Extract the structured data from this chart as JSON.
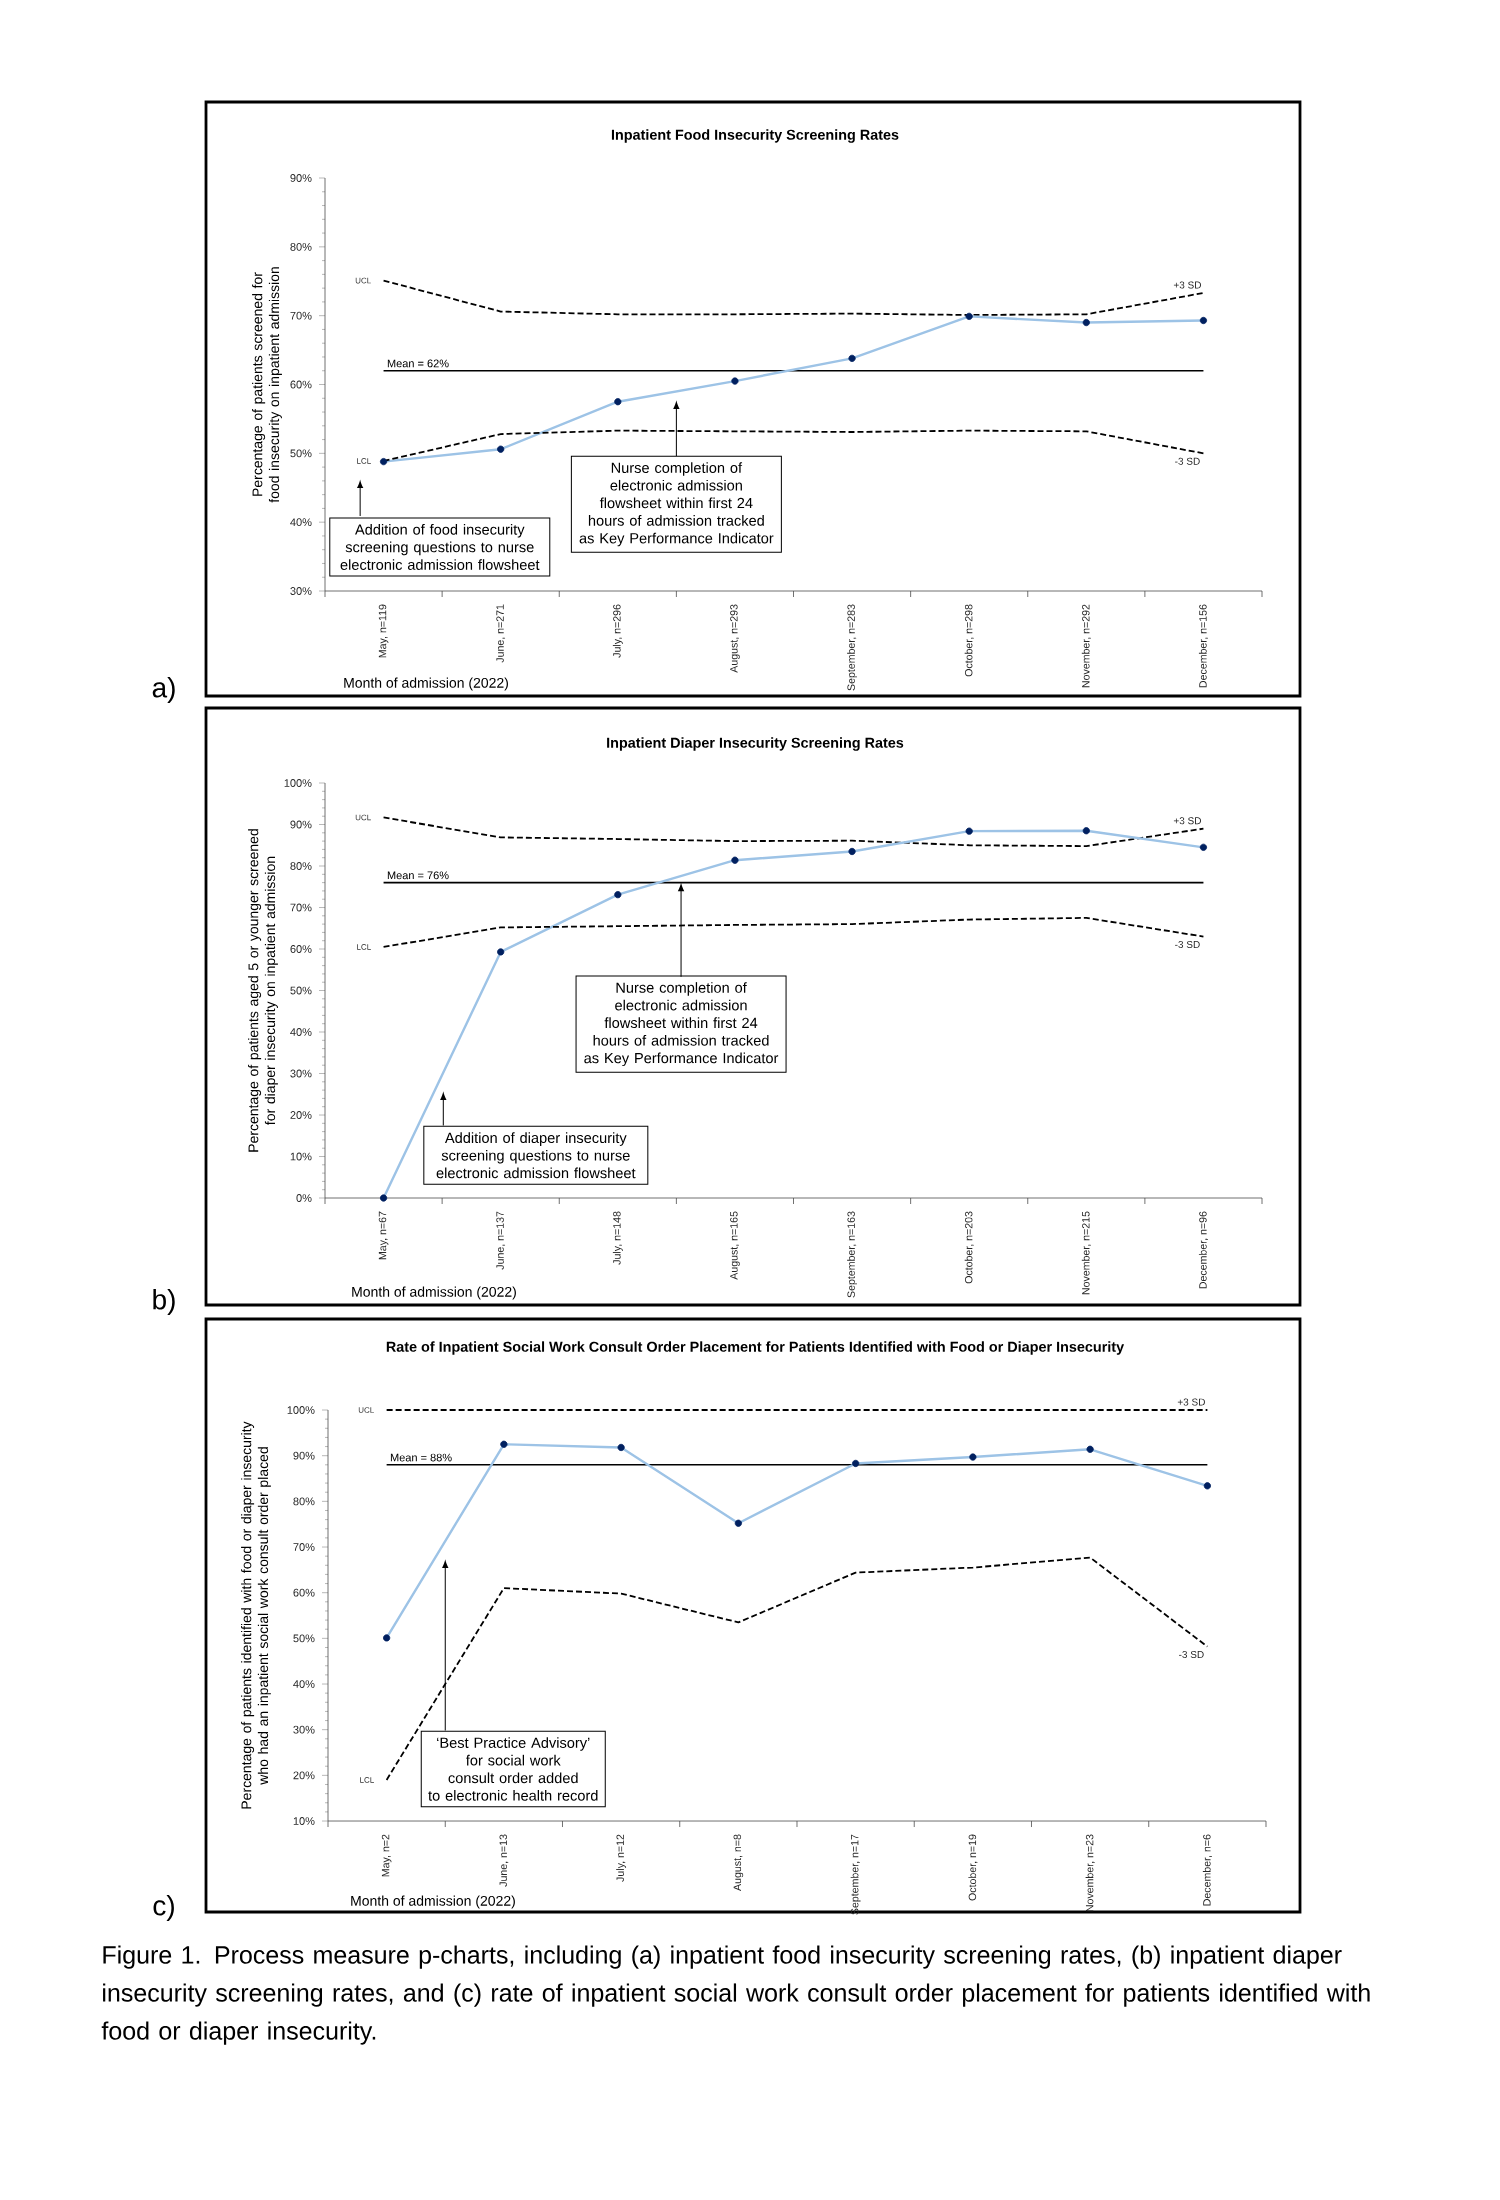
{
  "chart_data": [
    {
      "type": "line",
      "title": "Inpatient Food Insecurity Screening Rates",
      "xlabel": "Month of admission (2022)",
      "ylabel": "Percentage of patients screened for food insecurity on inpatient admission",
      "categories": [
        "May, n=119",
        "June, n=271",
        "July, n=296",
        "August, n=293",
        "September, n=283",
        "October, n=298",
        "November, n=292",
        "December, n=156"
      ],
      "series": [
        {
          "name": "UCL",
          "color": "#000000",
          "line_style": "dashed",
          "marker": "none",
          "values": [
            75.1,
            70.6,
            70.2,
            70.2,
            70.3,
            70.1,
            70.2,
            73.3
          ]
        },
        {
          "color": "#9dc3e6",
          "colors": [
            "#002060",
            "#002060",
            "#002060",
            "#002060",
            "#002060",
            "#002060",
            "#002060",
            "#002060"
          ],
          "marker": "circle",
          "values": [
            48.8,
            50.6,
            57.5,
            60.5,
            63.8,
            69.9,
            69.0,
            69.3
          ]
        },
        {
          "name": "LCL",
          "color": "#000000",
          "line_style": "dashed",
          "marker": "none",
          "values": [
            48.9,
            52.8,
            53.3,
            53.2,
            53.1,
            53.3,
            53.2,
            50.0
          ]
        }
      ],
      "ylim": [
        30,
        90
      ],
      "yticks": [
        {
          "value": 30,
          "label": "30%"
        },
        {
          "value": 40,
          "label": "40%"
        },
        {
          "value": 50,
          "label": "50%"
        },
        {
          "value": 60,
          "label": "60%"
        },
        {
          "value": 70,
          "label": "70%"
        },
        {
          "value": 80,
          "label": "80%"
        },
        {
          "value": 90,
          "label": "90%"
        }
      ],
      "ref_lines": [
        {
          "axis": "y",
          "value": 62,
          "label": "Mean = 62%",
          "color": "#000000"
        }
      ],
      "annotations": [
        "a)",
        "Addition of food insecurity screening questions to nurse electronic admission flowsheet",
        "Nurse completion of electronic admission flowsheet within first 24 hours of admission tracked as Key Performance Indicator",
        {
          "text": "+3 SD",
          "x": "December, n=156",
          "y": 73.3
        },
        {
          "text": "-3 SD",
          "x": "December, n=156",
          "y": 50.0
        }
      ]
    },
    {
      "type": "line",
      "title": "Inpatient Diaper Insecurity Screening Rates",
      "xlabel": "Month of admission (2022)",
      "ylabel": "Percentage of patients aged 5 or younger screened for diaper insecurity on inpatient admission",
      "categories": [
        "May, n=67",
        "June, n=137",
        "July, n=148",
        "August, n=165",
        "September, n=163",
        "October, n=203",
        "November, n=215",
        "December, n=96"
      ],
      "series": [
        {
          "name": "UCL",
          "color": "#000000",
          "line_style": "dashed",
          "marker": "none",
          "values": [
            91.7,
            86.9,
            86.5,
            86.0,
            86.1,
            85.0,
            84.8,
            89.0
          ]
        },
        {
          "color": "#9dc3e6",
          "colors": [
            "#002060",
            "#002060",
            "#002060",
            "#002060",
            "#002060",
            "#002060",
            "#002060",
            "#002060"
          ],
          "marker": "circle",
          "values": [
            0,
            59.3,
            73.1,
            81.4,
            83.5,
            88.4,
            88.5,
            84.5
          ]
        },
        {
          "name": "LCL",
          "color": "#000000",
          "line_style": "dashed",
          "marker": "none",
          "values": [
            60.5,
            65.2,
            65.5,
            65.8,
            66.0,
            67.1,
            67.5,
            63.0
          ]
        }
      ],
      "ylim": [
        0,
        100
      ],
      "yticks": [
        {
          "value": 0,
          "label": "0%"
        },
        {
          "value": 10,
          "label": "10%"
        },
        {
          "value": 20,
          "label": "20%"
        },
        {
          "value": 30,
          "label": "30%"
        },
        {
          "value": 40,
          "label": "40%"
        },
        {
          "value": 50,
          "label": "50%"
        },
        {
          "value": 60,
          "label": "60%"
        },
        {
          "value": 70,
          "label": "70%"
        },
        {
          "value": 80,
          "label": "80%"
        },
        {
          "value": 90,
          "label": "90%"
        },
        {
          "value": 100,
          "label": "100%"
        }
      ],
      "ref_lines": [
        {
          "axis": "y",
          "value": 76,
          "label": "Mean = 76%",
          "color": "#000000"
        }
      ],
      "annotations": [
        "b)",
        "Addition of diaper insecurity screening questions to nurse electronic admission flowsheet",
        {
          "text": "Nurse completion of electronic admission flowsheet within first 24 hours of admission tracked as Key Performance Indicator",
          "y": 76
        },
        {
          "text": "+3 SD",
          "x": "December, n=96",
          "y": 89.0
        },
        {
          "text": "-3 SD",
          "x": "December, n=96",
          "y": 63.0
        }
      ]
    },
    {
      "type": "line",
      "title": "Rate of Inpatient Social Work Consult Order Placement for Patients Identified with Food or Diaper Insecurity",
      "xlabel": "Month of admission (2022)",
      "ylabel": "Percentage of patients identified with food or diaper insecurity who had an inpatient social work consult order placed",
      "categories": [
        "May, n=2",
        "June, n=13",
        "July, n=12",
        "August, n=8",
        "September, n=17",
        "October, n=19",
        "November, n=23",
        "December, n=6"
      ],
      "series": [
        {
          "name": "UCL",
          "color": "#000000",
          "line_style": "dashed",
          "marker": "none",
          "values": [
            100,
            100,
            100,
            100,
            100,
            100,
            100,
            100
          ]
        },
        {
          "color": "#9dc3e6",
          "colors": [
            "#002060",
            "#002060",
            "#002060",
            "#002060",
            "#002060",
            "#002060",
            "#002060",
            "#002060"
          ],
          "marker": "circle",
          "values": [
            50.1,
            92.5,
            91.8,
            75.2,
            88.3,
            89.7,
            91.4,
            83.4
          ]
        },
        {
          "name": "LCL",
          "color": "#000000",
          "line_style": "dashed",
          "marker": "none",
          "values": [
            19.0,
            61.0,
            59.8,
            53.5,
            64.4,
            65.5,
            67.7,
            48.2
          ]
        }
      ],
      "ylim": [
        10,
        100
      ],
      "yticks": [
        {
          "value": 10,
          "label": "10%"
        },
        {
          "value": 20,
          "label": "20%"
        },
        {
          "value": 30,
          "label": "30%"
        },
        {
          "value": 40,
          "label": "40%"
        },
        {
          "value": 50,
          "label": "50%"
        },
        {
          "value": 60,
          "label": "60%"
        },
        {
          "value": 70,
          "label": "70%"
        },
        {
          "value": 80,
          "label": "80%"
        },
        {
          "value": 90,
          "label": "90%"
        },
        {
          "value": 100,
          "label": "100%"
        }
      ],
      "ref_lines": [
        {
          "axis": "y",
          "value": 88,
          "label": "Mean = 88%",
          "color": "#000000"
        }
      ],
      "annotations": [
        "c)",
        "‘Best Practice Advisory’ for social work consult order added to electronic health record",
        {
          "text": "+3 SD",
          "x": "December, n=6",
          "y": 100
        },
        {
          "text": "-3 SD",
          "x": "December, n=6",
          "y": 48.2
        },
        "Figure 1. Process measure p-charts, including (a) inpatient food insecurity screening rates, (b) inpatient diaper insecurity screening rates, and (c) rate of inpatient social work consult order placement for patients identified with food or diaper insecurity."
      ]
    }
  ]
}
